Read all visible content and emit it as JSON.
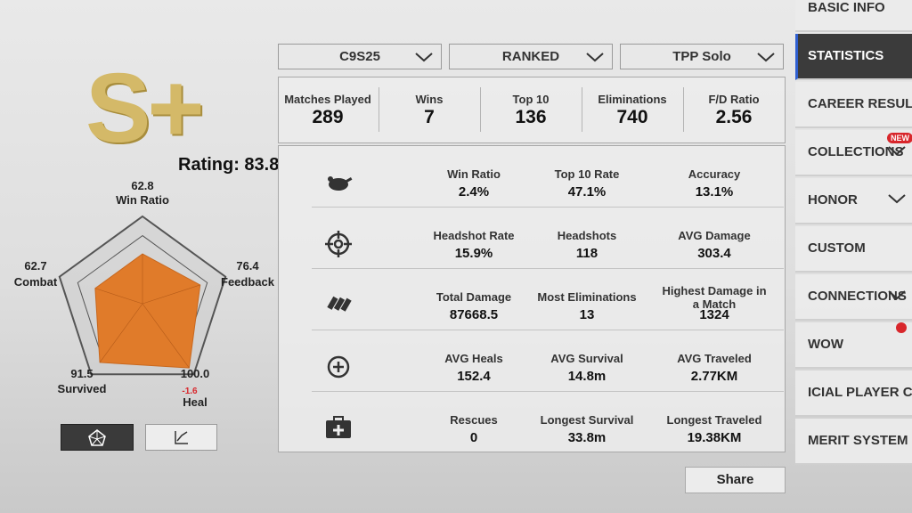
{
  "rank": "S+",
  "rating": "Rating: 83.8",
  "chart_data": {
    "type": "radar",
    "categories": [
      "Win Ratio",
      "Feedback",
      "Heal",
      "Survived",
      "Combat"
    ],
    "values": [
      62.8,
      76.4,
      100.0,
      91.5,
      62.7
    ],
    "value_labels": [
      "62.8",
      "76.4",
      "100.0",
      "91.5",
      "62.7"
    ],
    "annotations": [
      "-1.6"
    ],
    "ylim": [
      0,
      110
    ],
    "color": "#e07b2a"
  },
  "filters": [
    "C9S25",
    "RANKED",
    "TPP Solo"
  ],
  "summary": [
    {
      "label": "Matches Played",
      "value": 289
    },
    {
      "label": "Wins",
      "value": 7
    },
    {
      "label": "Top 10",
      "value": 136
    },
    {
      "label": "Eliminations",
      "value": 740
    },
    {
      "label": "F/D Ratio",
      "value": 2.56
    }
  ],
  "stats": [
    [
      {
        "label": "Win Ratio",
        "value": "2.4%"
      },
      {
        "label": "Top 10 Rate",
        "value": "47.1%"
      },
      {
        "label": "Accuracy",
        "value": "13.1%"
      }
    ],
    [
      {
        "label": "Headshot Rate",
        "value": "15.9%"
      },
      {
        "label": "Headshots",
        "value": 118
      },
      {
        "label": "AVG Damage",
        "value": 303.4
      }
    ],
    [
      {
        "label": "Total Damage",
        "value": 87668.5
      },
      {
        "label": "Most Eliminations",
        "value": 13
      },
      {
        "label": "Highest Damage in a Match",
        "value": 1324
      }
    ],
    [
      {
        "label": "AVG Heals",
        "value": 152.4
      },
      {
        "label": "AVG Survival",
        "value": "14.8m"
      },
      {
        "label": "AVG Traveled",
        "value": "2.77KM"
      }
    ],
    [
      {
        "label": "Rescues",
        "value": 0
      },
      {
        "label": "Longest Survival",
        "value": "33.8m"
      },
      {
        "label": "Longest Traveled",
        "value": "19.38KM"
      }
    ]
  ],
  "menu": [
    "BASIC INFO",
    "STATISTICS",
    "CAREER RESULTS",
    "COLLECTIONS",
    "HONOR",
    "CUSTOM",
    "CONNECTIONS",
    "WOW",
    "ICIAL PLAYER CARD",
    "MERIT SYSTEM"
  ],
  "badge": "NEW",
  "share": "Share"
}
